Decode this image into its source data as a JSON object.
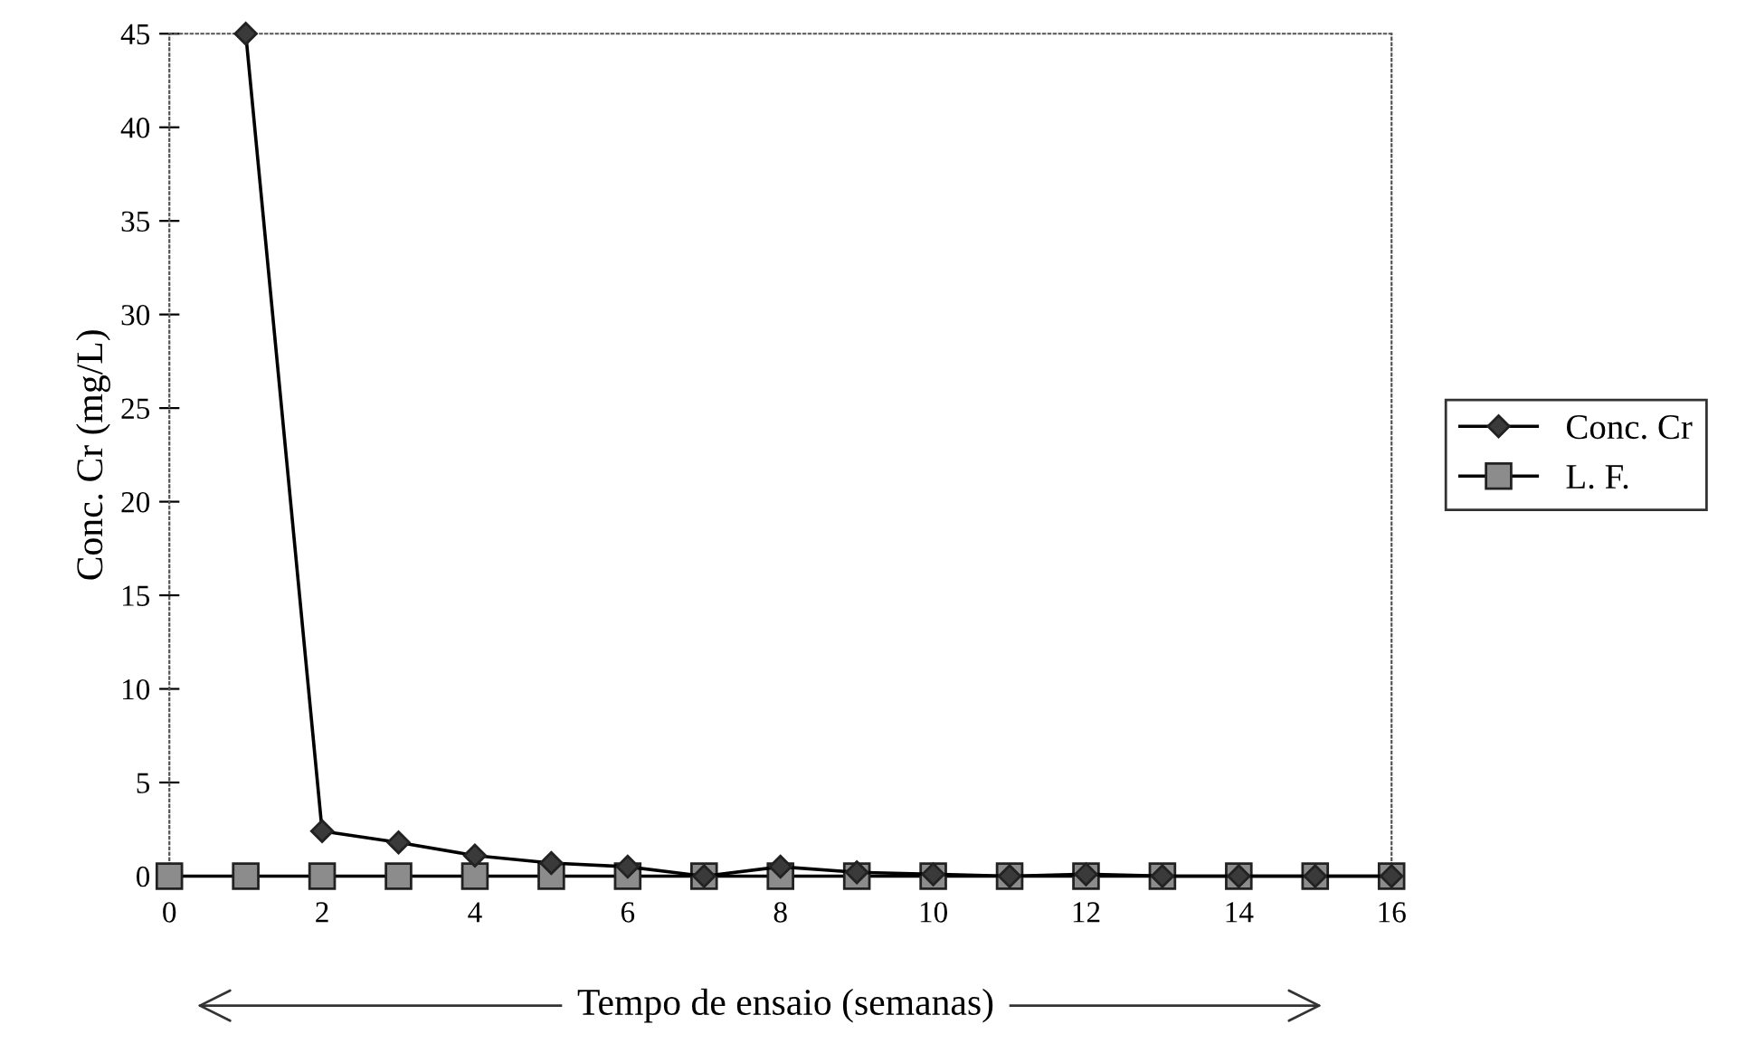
{
  "chart_data": {
    "type": "line",
    "xlabel": "Tempo de ensaio (semanas)",
    "ylabel": "Conc. Cr (mg/L)",
    "series": [
      {
        "name": "Conc. Cr",
        "color": "#3a3a3a",
        "marker": "diamond",
        "x": [
          1,
          2,
          3,
          4,
          5,
          6,
          7,
          8,
          9,
          10,
          11,
          12,
          13,
          14,
          15,
          16
        ],
        "values": [
          45,
          2.4,
          1.8,
          1.1,
          0.7,
          0.5,
          0,
          0.5,
          0.2,
          0.1,
          0,
          0.1,
          0,
          0,
          0,
          0
        ]
      },
      {
        "name": "L. F.",
        "color": "#8c8c8c",
        "marker": "square",
        "x": [
          0,
          1,
          2,
          3,
          4,
          5,
          6,
          7,
          8,
          9,
          10,
          11,
          12,
          13,
          14,
          15,
          16
        ],
        "values": [
          0,
          0,
          0,
          0,
          0,
          0,
          0,
          0,
          0,
          0,
          0,
          0,
          0,
          0,
          0,
          0,
          0
        ]
      }
    ],
    "xlim": [
      0,
      16
    ],
    "xticks": [
      0,
      2,
      4,
      6,
      8,
      10,
      12,
      14,
      16
    ],
    "ylim": [
      0,
      45
    ],
    "yticks": [
      0,
      5,
      10,
      15,
      20,
      25,
      30,
      35,
      40,
      45
    ],
    "grid": false,
    "legend": "right",
    "line_style": "solid"
  }
}
